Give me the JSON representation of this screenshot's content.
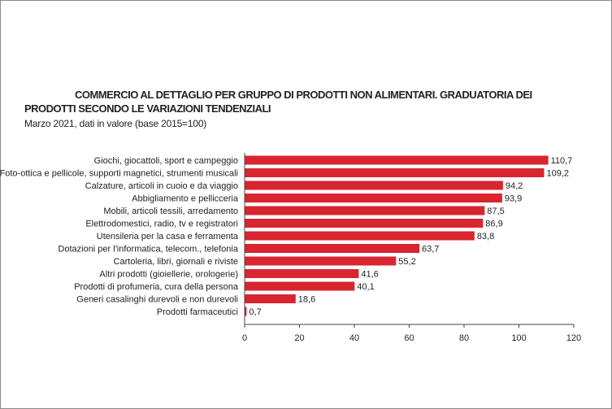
{
  "title_line1": "COMMERCIO AL DETTAGLIO PER GRUPPO DI PRODOTTI NON ALIMENTARI. GRADUATORIA DEI",
  "title_line2": "PRODOTTI SECONDO LE VARIAZIONI TENDENZIALI",
  "subtitle": "Marzo 2021, dati in valore (base 2015=100)",
  "colors": {
    "bar": "#d9252f",
    "axis": "#444444"
  },
  "chart_data": {
    "type": "bar",
    "orientation": "horizontal",
    "categories": [
      "Giochi, giocattoli, sport e campeggio",
      "Foto-ottica e pellicole, supporti magnetici, strumenti  musicali",
      "Calzature, articoli in cuoio e da viaggio",
      "Abbigliamento e pellicceria",
      "Mobili, articoli tessili, arredamento",
      "Elettrodomestici, radio, tv e registratori",
      "Utensileria per la casa e ferramenta",
      "Dotazioni per l'informatica, telecom., telefonia",
      "Cartoleria, libri, giornali e riviste",
      "Altri prodotti (gioiellerie, orologerie)",
      "Prodotti di profumeria, cura della persona",
      "Generi casalinghi durevoli e non durevoli",
      "Prodotti farmaceutici"
    ],
    "values": [
      110.7,
      109.2,
      94.2,
      93.9,
      87.5,
      86.9,
      83.8,
      63.7,
      55.2,
      41.6,
      40.1,
      18.6,
      0.7
    ],
    "value_labels": [
      "110,7",
      "109,2",
      "94,2",
      "93,9",
      "87,5",
      "86,9",
      "83,8",
      "63,7",
      "55,2",
      "41,6",
      "40,1",
      "18,6",
      "0,7"
    ],
    "xlim": [
      0,
      120
    ],
    "xticks": [
      "0",
      "20",
      "40",
      "60",
      "80",
      "100",
      "120"
    ],
    "grid": false,
    "legend": "none"
  }
}
